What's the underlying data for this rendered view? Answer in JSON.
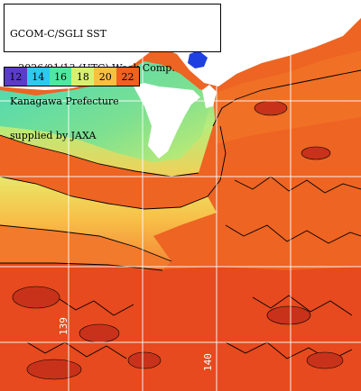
{
  "title": {
    "lines": [
      "GCOM-C/SGLI SST",
      "~2026/01/13 (UTC) Week Comp.",
      "Kanagawa Prefecture",
      "supplied by JAXA"
    ]
  },
  "legend": {
    "labels": [
      "12",
      "14",
      "16",
      "18",
      "20",
      "22"
    ],
    "colors": [
      "#5a3cc8",
      "#2ec8f0",
      "#50e8a0",
      "#d8f070",
      "#f8c040",
      "#f06020"
    ]
  },
  "longitude_labels": [
    "139",
    "140"
  ],
  "colors": {
    "land": "#ffffff",
    "grid": "#ffffff",
    "contour": "#000000",
    "warm_sea": "#ee6422",
    "hot_sea": "#e8421e",
    "mid_sea": "#f49a3c",
    "bay_green": "#8ee08a",
    "bay_teal": "#54dca8",
    "cold_blue": "#1e40e0"
  }
}
